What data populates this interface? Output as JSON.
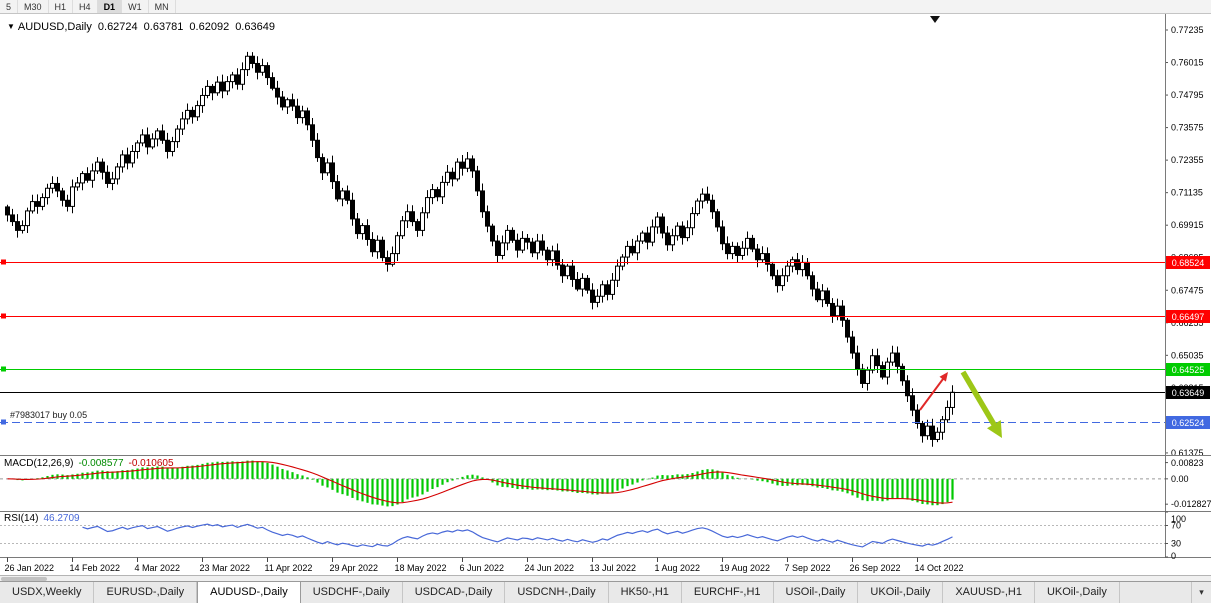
{
  "toolbar": {
    "timeframes": [
      {
        "label": "5",
        "active": false
      },
      {
        "label": "M30",
        "active": false
      },
      {
        "label": "H1",
        "active": false
      },
      {
        "label": "H4",
        "active": false
      },
      {
        "label": "D1",
        "active": true
      },
      {
        "label": "W1",
        "active": false
      },
      {
        "label": "MN",
        "active": false
      }
    ]
  },
  "chart": {
    "symbol_title": "AUDUSD,Daily",
    "open": "0.62724",
    "high": "0.63781",
    "low": "0.62092",
    "close": "0.63649",
    "position_note": "#7983017 buy 0.05"
  },
  "icons": {
    "chart_marker": "▼",
    "tabs_overflow": "▾"
  },
  "price_axis_ticks": [
    "0.77235",
    "0.76015",
    "0.74795",
    "0.73575",
    "0.72355",
    "0.71135",
    "0.69915",
    "0.68695",
    "0.67475",
    "0.66255",
    "0.65035",
    "0.63815",
    "0.62595",
    "0.61375"
  ],
  "levels": [
    {
      "price": 0.68524,
      "label": "0.68524",
      "color": "#FF0000",
      "line": "solid",
      "handle": true
    },
    {
      "price": 0.66497,
      "label": "0.66497",
      "color": "#FF0000",
      "line": "solid",
      "handle": true
    },
    {
      "price": 0.64525,
      "label": "0.64525",
      "color": "#00CC00",
      "line": "solid",
      "handle": true
    },
    {
      "price": 0.63649,
      "label": "0.63649",
      "color": "#000000",
      "line": "solid",
      "handle": false
    },
    {
      "price": 0.62524,
      "label": "0.62524",
      "color": "#4169E1",
      "line": "dash",
      "handle": true
    }
  ],
  "macd": {
    "name": "MACD(12,26,9)",
    "value_main": "-0.008577",
    "value_signal": "-0.010605",
    "axis": [
      "0.00823",
      "0.00",
      "-0.012827"
    ],
    "color_hist": "#00C800",
    "color_signal": "#D40000"
  },
  "rsi": {
    "name": "RSI(14)",
    "value": "46.2709",
    "axis_labels": [
      "100",
      "70",
      "30",
      "0"
    ],
    "levels": [
      70,
      30
    ],
    "color": "#4868D8"
  },
  "arrows": [
    {
      "type": "up-arrow",
      "color": "#E02828"
    },
    {
      "type": "down-arrow",
      "color": "#9DC717"
    }
  ],
  "tabs": [
    {
      "label": "USDX,Weekly",
      "active": false
    },
    {
      "label": "EURUSD-,Daily",
      "active": false
    },
    {
      "label": "AUDUSD-,Daily",
      "active": true
    },
    {
      "label": "USDCHF-,Daily",
      "active": false
    },
    {
      "label": "USDCAD-,Daily",
      "active": false
    },
    {
      "label": "USDCNH-,Daily",
      "active": false
    },
    {
      "label": "HK50-,H1",
      "active": false
    },
    {
      "label": "EURCHF-,H1",
      "active": false
    },
    {
      "label": "USOil-,Daily",
      "active": false
    },
    {
      "label": "UKOil-,Daily",
      "active": false
    },
    {
      "label": "XAUUSD-,H1",
      "active": false
    },
    {
      "label": "UKOil-,Daily",
      "active": false
    }
  ],
  "chart_data": {
    "type": "candlestick",
    "title": "AUDUSD,Daily",
    "timeframe": "D1",
    "y_range": {
      "min": 0.61297,
      "max": 0.77835
    },
    "first_open": 0.706,
    "x_axis": {
      "labels": [
        {
          "index": 0,
          "label": "26 Jan 2022"
        },
        {
          "index": 13,
          "label": "14 Feb 2022"
        },
        {
          "index": 26,
          "label": "4 Mar 2022"
        },
        {
          "index": 39,
          "label": "23 Mar 2022"
        },
        {
          "index": 52,
          "label": "11 Apr 2022"
        },
        {
          "index": 65,
          "label": "29 Apr 2022"
        },
        {
          "index": 78,
          "label": "18 May 2022"
        },
        {
          "index": 91,
          "label": "6 Jun 2022"
        },
        {
          "index": 104,
          "label": "24 Jun 2022"
        },
        {
          "index": 117,
          "label": "13 Jul 2022"
        },
        {
          "index": 130,
          "label": "1 Aug 2022"
        },
        {
          "index": 143,
          "label": "19 Aug 2022"
        },
        {
          "index": 156,
          "label": "7 Sep 2022"
        },
        {
          "index": 169,
          "label": "26 Sep 2022"
        },
        {
          "index": 182,
          "label": "14 Oct 2022"
        }
      ]
    },
    "closes": [
      0.703,
      0.7005,
      0.6972,
      0.699,
      0.7045,
      0.708,
      0.7062,
      0.7095,
      0.713,
      0.7148,
      0.712,
      0.7085,
      0.7062,
      0.7135,
      0.715,
      0.7185,
      0.716,
      0.7195,
      0.7228,
      0.719,
      0.7148,
      0.7165,
      0.721,
      0.7255,
      0.7225,
      0.7268,
      0.73,
      0.733,
      0.7285,
      0.7315,
      0.7345,
      0.731,
      0.7268,
      0.7305,
      0.7352,
      0.739,
      0.7422,
      0.7398,
      0.744,
      0.7478,
      0.7512,
      0.7488,
      0.7528,
      0.7495,
      0.753,
      0.7555,
      0.752,
      0.7575,
      0.7625,
      0.7598,
      0.7565,
      0.759,
      0.7545,
      0.7505,
      0.7472,
      0.7435,
      0.7462,
      0.7438,
      0.7395,
      0.742,
      0.7368,
      0.731,
      0.7245,
      0.7188,
      0.7225,
      0.7155,
      0.709,
      0.712,
      0.7085,
      0.7015,
      0.696,
      0.699,
      0.6938,
      0.6892,
      0.6935,
      0.687,
      0.6845,
      0.6885,
      0.6952,
      0.7008,
      0.7042,
      0.7005,
      0.6972,
      0.7038,
      0.7095,
      0.7125,
      0.7098,
      0.7152,
      0.719,
      0.7165,
      0.7228,
      0.7205,
      0.724,
      0.7195,
      0.712,
      0.7042,
      0.6988,
      0.6932,
      0.6878,
      0.6925,
      0.6972,
      0.6935,
      0.6898,
      0.6942,
      0.6928,
      0.6888,
      0.6932,
      0.6898,
      0.6862,
      0.6895,
      0.6842,
      0.6802,
      0.6838,
      0.6788,
      0.6752,
      0.6792,
      0.6748,
      0.6702,
      0.6725,
      0.6768,
      0.6732,
      0.6785,
      0.6838,
      0.6872,
      0.6912,
      0.6888,
      0.6932,
      0.6962,
      0.6928,
      0.6985,
      0.7022,
      0.6962,
      0.6918,
      0.6952,
      0.6988,
      0.6945,
      0.6982,
      0.7035,
      0.7082,
      0.7108,
      0.7085,
      0.7042,
      0.6985,
      0.6922,
      0.6885,
      0.6912,
      0.6878,
      0.6905,
      0.6942,
      0.6902,
      0.6862,
      0.6885,
      0.6845,
      0.6802,
      0.6765,
      0.6802,
      0.6838,
      0.6862,
      0.6825,
      0.6852,
      0.6802,
      0.6752,
      0.6712,
      0.6745,
      0.6698,
      0.6652,
      0.6688,
      0.6635,
      0.6572,
      0.6512,
      0.6452,
      0.6398,
      0.6448,
      0.6502,
      0.6465,
      0.6422,
      0.6478,
      0.6512,
      0.6462,
      0.6408,
      0.6352,
      0.6298,
      0.6248,
      0.6202,
      0.6238,
      0.6188,
      0.6215,
      0.6262,
      0.6308,
      0.63649
    ]
  }
}
